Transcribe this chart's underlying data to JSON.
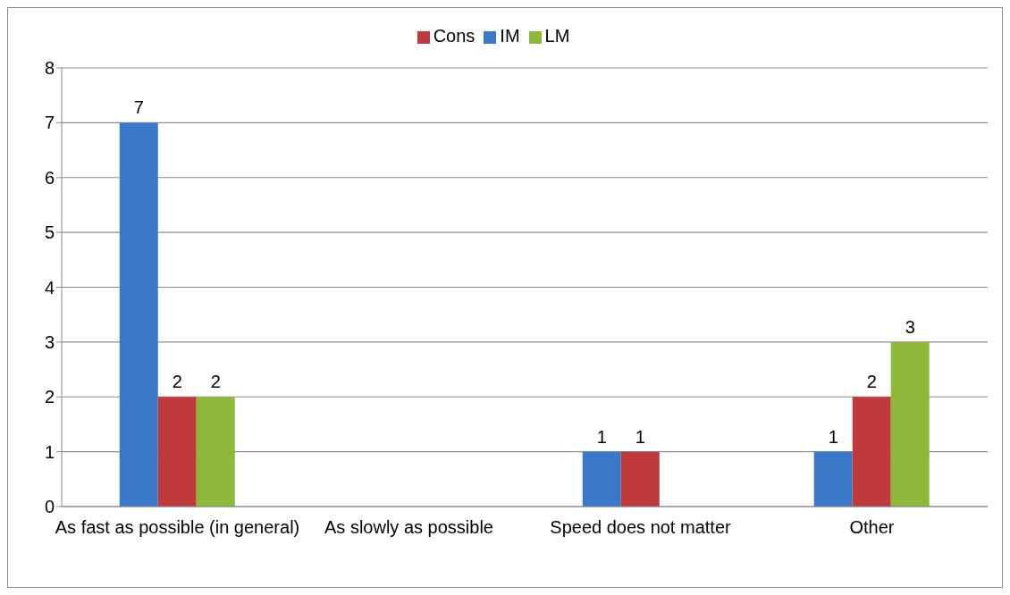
{
  "chart_data": {
    "type": "bar",
    "categories": [
      "As fast as possible (in general)",
      "As slowly as possible",
      "Speed does not matter",
      "Other"
    ],
    "series": [
      {
        "name": "IM",
        "color": "#3a78c9",
        "values": [
          7,
          null,
          1,
          1
        ]
      },
      {
        "name": "Cons",
        "color": "#c0393b",
        "values": [
          2,
          null,
          1,
          2
        ]
      },
      {
        "name": "LM",
        "color": "#8db83a",
        "values": [
          2,
          null,
          null,
          3
        ]
      }
    ],
    "ylim": [
      0,
      8
    ],
    "yticks": [
      0,
      1,
      2,
      3,
      4,
      5,
      6,
      7,
      8
    ],
    "grid": "y",
    "legend": "top",
    "data_labels": true
  }
}
